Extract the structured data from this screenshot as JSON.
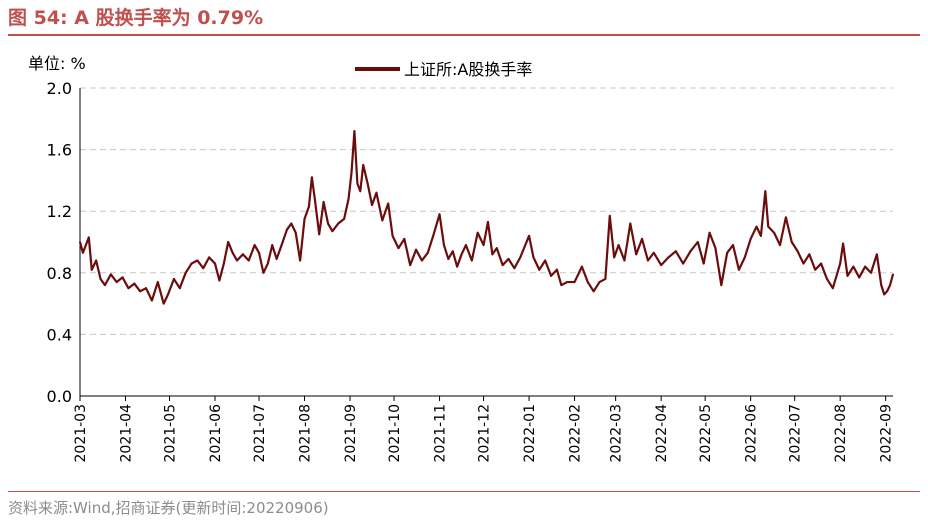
{
  "figure": {
    "title": "图 54:  A 股换手率为 0.79%",
    "unit": "单位:  %",
    "source": "资料来源:Wind,招商证券(更新时间:20220906)"
  },
  "colors": {
    "series": "#6b0d0d",
    "title": "#c0504d",
    "grid": "#c8c8c8"
  },
  "chart_data": {
    "type": "line",
    "title": "A 股换手率为 0.79%",
    "ylabel": "%",
    "xlabel": "",
    "ylim": [
      0,
      2.0
    ],
    "yticks": [
      0.0,
      0.4,
      0.8,
      1.2,
      1.6,
      2.0
    ],
    "ytick_labels": [
      "0.0",
      "0.4",
      "0.8",
      "1.2",
      "1.6",
      "2.0"
    ],
    "xlim": [
      "2021-03-01",
      "2022-09-06"
    ],
    "xtick_labels": [
      "2021-03",
      "2021-04",
      "2021-05",
      "2021-06",
      "2021-07",
      "2021-08",
      "2021-09",
      "2021-10",
      "2021-11",
      "2021-12",
      "2022-01",
      "2022-02",
      "2022-03",
      "2022-04",
      "2022-05",
      "2022-06",
      "2022-07",
      "2022-08",
      "2022-09"
    ],
    "grid": true,
    "legend": "top-center",
    "series": [
      {
        "name": "上证所:A股换手率",
        "points": [
          [
            "2021-03-01",
            1.0
          ],
          [
            "2021-03-03",
            0.93
          ],
          [
            "2021-03-05",
            0.98
          ],
          [
            "2021-03-07",
            1.03
          ],
          [
            "2021-03-09",
            0.82
          ],
          [
            "2021-03-12",
            0.88
          ],
          [
            "2021-03-15",
            0.76
          ],
          [
            "2021-03-18",
            0.72
          ],
          [
            "2021-03-22",
            0.79
          ],
          [
            "2021-03-26",
            0.74
          ],
          [
            "2021-03-30",
            0.77
          ],
          [
            "2021-04-03",
            0.7
          ],
          [
            "2021-04-07",
            0.73
          ],
          [
            "2021-04-11",
            0.68
          ],
          [
            "2021-04-15",
            0.7
          ],
          [
            "2021-04-19",
            0.62
          ],
          [
            "2021-04-23",
            0.74
          ],
          [
            "2021-04-27",
            0.6
          ],
          [
            "2021-04-30",
            0.66
          ],
          [
            "2021-05-04",
            0.76
          ],
          [
            "2021-05-08",
            0.7
          ],
          [
            "2021-05-12",
            0.8
          ],
          [
            "2021-05-16",
            0.86
          ],
          [
            "2021-05-20",
            0.88
          ],
          [
            "2021-05-24",
            0.83
          ],
          [
            "2021-05-28",
            0.9
          ],
          [
            "2021-06-01",
            0.86
          ],
          [
            "2021-06-04",
            0.75
          ],
          [
            "2021-06-07",
            0.86
          ],
          [
            "2021-06-10",
            1.0
          ],
          [
            "2021-06-13",
            0.93
          ],
          [
            "2021-06-16",
            0.88
          ],
          [
            "2021-06-20",
            0.92
          ],
          [
            "2021-06-24",
            0.88
          ],
          [
            "2021-06-28",
            0.98
          ],
          [
            "2021-07-01",
            0.93
          ],
          [
            "2021-07-04",
            0.8
          ],
          [
            "2021-07-07",
            0.86
          ],
          [
            "2021-07-10",
            0.98
          ],
          [
            "2021-07-13",
            0.89
          ],
          [
            "2021-07-16",
            0.97
          ],
          [
            "2021-07-20",
            1.08
          ],
          [
            "2021-07-23",
            1.12
          ],
          [
            "2021-07-26",
            1.06
          ],
          [
            "2021-07-29",
            0.88
          ],
          [
            "2021-08-01",
            1.15
          ],
          [
            "2021-08-04",
            1.23
          ],
          [
            "2021-08-06",
            1.42
          ],
          [
            "2021-08-08",
            1.28
          ],
          [
            "2021-08-11",
            1.05
          ],
          [
            "2021-08-14",
            1.26
          ],
          [
            "2021-08-17",
            1.12
          ],
          [
            "2021-08-20",
            1.07
          ],
          [
            "2021-08-24",
            1.12
          ],
          [
            "2021-08-28",
            1.15
          ],
          [
            "2021-08-31",
            1.28
          ],
          [
            "2021-09-02",
            1.45
          ],
          [
            "2021-09-04",
            1.72
          ],
          [
            "2021-09-06",
            1.38
          ],
          [
            "2021-09-08",
            1.33
          ],
          [
            "2021-09-10",
            1.5
          ],
          [
            "2021-09-13",
            1.38
          ],
          [
            "2021-09-16",
            1.24
          ],
          [
            "2021-09-19",
            1.32
          ],
          [
            "2021-09-23",
            1.14
          ],
          [
            "2021-09-27",
            1.25
          ],
          [
            "2021-09-30",
            1.04
          ],
          [
            "2021-10-04",
            0.96
          ],
          [
            "2021-10-08",
            1.02
          ],
          [
            "2021-10-12",
            0.85
          ],
          [
            "2021-10-16",
            0.95
          ],
          [
            "2021-10-20",
            0.88
          ],
          [
            "2021-10-24",
            0.93
          ],
          [
            "2021-10-28",
            1.05
          ],
          [
            "2021-11-01",
            1.18
          ],
          [
            "2021-11-04",
            0.98
          ],
          [
            "2021-11-07",
            0.89
          ],
          [
            "2021-11-10",
            0.94
          ],
          [
            "2021-11-13",
            0.84
          ],
          [
            "2021-11-16",
            0.92
          ],
          [
            "2021-11-19",
            0.98
          ],
          [
            "2021-11-23",
            0.88
          ],
          [
            "2021-11-27",
            1.06
          ],
          [
            "2021-12-01",
            0.98
          ],
          [
            "2021-12-04",
            1.13
          ],
          [
            "2021-12-07",
            0.92
          ],
          [
            "2021-12-10",
            0.96
          ],
          [
            "2021-12-14",
            0.85
          ],
          [
            "2021-12-18",
            0.89
          ],
          [
            "2021-12-22",
            0.83
          ],
          [
            "2021-12-26",
            0.9
          ],
          [
            "2022-01-01",
            1.04
          ],
          [
            "2022-01-04",
            0.9
          ],
          [
            "2022-01-08",
            0.82
          ],
          [
            "2022-01-12",
            0.88
          ],
          [
            "2022-01-16",
            0.78
          ],
          [
            "2022-01-20",
            0.82
          ],
          [
            "2022-01-23",
            0.72
          ],
          [
            "2022-01-27",
            0.74
          ],
          [
            "2022-02-01",
            0.74
          ],
          [
            "2022-02-06",
            0.84
          ],
          [
            "2022-02-10",
            0.74
          ],
          [
            "2022-02-14",
            0.68
          ],
          [
            "2022-02-18",
            0.74
          ],
          [
            "2022-02-22",
            0.76
          ],
          [
            "2022-02-25",
            1.17
          ],
          [
            "2022-02-28",
            0.9
          ],
          [
            "2022-03-03",
            0.98
          ],
          [
            "2022-03-07",
            0.88
          ],
          [
            "2022-03-11",
            1.12
          ],
          [
            "2022-03-15",
            0.92
          ],
          [
            "2022-03-19",
            1.02
          ],
          [
            "2022-03-23",
            0.88
          ],
          [
            "2022-03-27",
            0.93
          ],
          [
            "2022-04-01",
            0.85
          ],
          [
            "2022-04-06",
            0.9
          ],
          [
            "2022-04-11",
            0.94
          ],
          [
            "2022-04-16",
            0.86
          ],
          [
            "2022-04-21",
            0.94
          ],
          [
            "2022-04-26",
            1.0
          ],
          [
            "2022-04-30",
            0.86
          ],
          [
            "2022-05-04",
            1.06
          ],
          [
            "2022-05-08",
            0.96
          ],
          [
            "2022-05-12",
            0.72
          ],
          [
            "2022-05-16",
            0.93
          ],
          [
            "2022-05-20",
            0.98
          ],
          [
            "2022-05-24",
            0.82
          ],
          [
            "2022-05-28",
            0.9
          ],
          [
            "2022-06-01",
            1.02
          ],
          [
            "2022-06-05",
            1.1
          ],
          [
            "2022-06-08",
            1.04
          ],
          [
            "2022-06-11",
            1.33
          ],
          [
            "2022-06-13",
            1.1
          ],
          [
            "2022-06-17",
            1.06
          ],
          [
            "2022-06-21",
            0.98
          ],
          [
            "2022-06-25",
            1.16
          ],
          [
            "2022-06-29",
            1.0
          ],
          [
            "2022-07-03",
            0.94
          ],
          [
            "2022-07-07",
            0.86
          ],
          [
            "2022-07-11",
            0.92
          ],
          [
            "2022-07-15",
            0.82
          ],
          [
            "2022-07-19",
            0.86
          ],
          [
            "2022-07-23",
            0.76
          ],
          [
            "2022-07-27",
            0.7
          ],
          [
            "2022-08-01",
            0.86
          ],
          [
            "2022-08-03",
            0.99
          ],
          [
            "2022-08-06",
            0.78
          ],
          [
            "2022-08-10",
            0.84
          ],
          [
            "2022-08-14",
            0.77
          ],
          [
            "2022-08-18",
            0.84
          ],
          [
            "2022-08-22",
            0.8
          ],
          [
            "2022-08-26",
            0.92
          ],
          [
            "2022-08-29",
            0.72
          ],
          [
            "2022-08-31",
            0.66
          ],
          [
            "2022-09-02",
            0.68
          ],
          [
            "2022-09-04",
            0.72
          ],
          [
            "2022-09-06",
            0.79
          ]
        ]
      }
    ]
  }
}
